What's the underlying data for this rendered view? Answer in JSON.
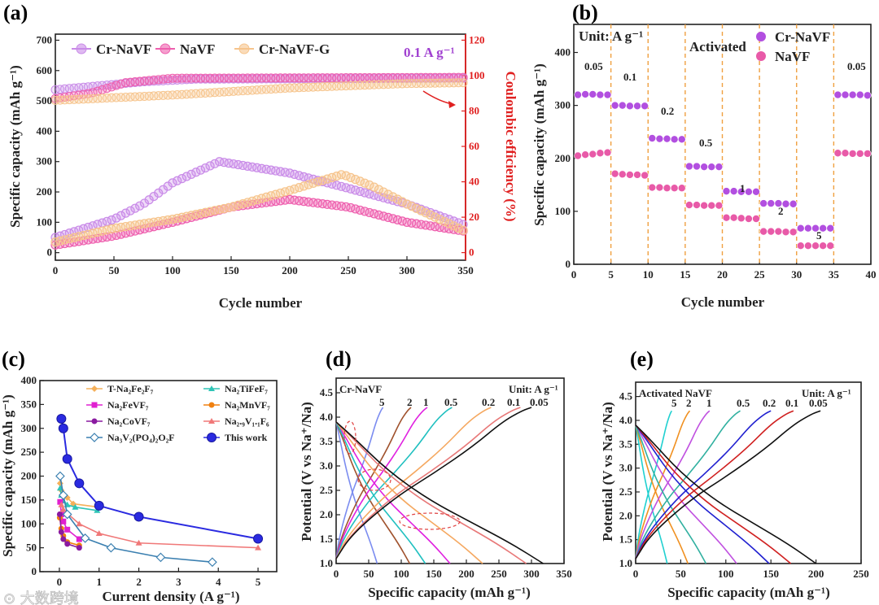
{
  "watermark": "大数跨境",
  "chart_data": [
    {
      "panel": "(a)",
      "type": "line",
      "xlabel": "Cycle number",
      "ylabel": "Specific capacity (mAh g⁻¹)",
      "y2label": "Coulombic efficiency (%)",
      "xlim": [
        0,
        350
      ],
      "ylim": [
        0,
        700
      ],
      "y2lim": [
        0,
        120
      ],
      "xticks": [
        0,
        50,
        100,
        150,
        200,
        250,
        300,
        350
      ],
      "yticks": [
        0,
        100,
        200,
        300,
        400,
        500,
        600,
        700
      ],
      "y2ticks": [
        0,
        20,
        40,
        60,
        80,
        100,
        120
      ],
      "rate_label": "0.1 A g⁻¹",
      "colors": {
        "rate_label": "#a040d0",
        "y2axis": "#e02020"
      },
      "series": [
        {
          "name": "Cr-NaVF",
          "color": "#c98be8",
          "capacity": [
            [
              0,
              50
            ],
            [
              50,
              110
            ],
            [
              75,
              160
            ],
            [
              100,
              230
            ],
            [
              140,
              300
            ],
            [
              200,
              262
            ],
            [
              250,
              212
            ],
            [
              300,
              160
            ],
            [
              350,
              90
            ]
          ],
          "coulombic_efficiency": [
            [
              0,
              92
            ],
            [
              50,
              95
            ],
            [
              75,
              96.5
            ],
            [
              120,
              98
            ],
            [
              350,
              98.5
            ]
          ]
        },
        {
          "name": "NaVF",
          "color": "#ee5fae",
          "capacity": [
            [
              0,
              25
            ],
            [
              50,
              55
            ],
            [
              100,
              100
            ],
            [
              150,
              150
            ],
            [
              200,
              175
            ],
            [
              250,
              150
            ],
            [
              300,
              100
            ],
            [
              350,
              70
            ]
          ],
          "coulombic_efficiency": [
            [
              0,
              87
            ],
            [
              30,
              90
            ],
            [
              60,
              96
            ],
            [
              100,
              98.5
            ],
            [
              350,
              99
            ]
          ]
        },
        {
          "name": "Cr-NaVF-G",
          "color": "#f6c48c",
          "capacity": [
            [
              0,
              35
            ],
            [
              50,
              80
            ],
            [
              100,
              110
            ],
            [
              150,
              150
            ],
            [
              200,
              205
            ],
            [
              245,
              258
            ],
            [
              270,
              220
            ],
            [
              300,
              160
            ],
            [
              350,
              70
            ]
          ],
          "coulombic_efficiency": [
            [
              0,
              86
            ],
            [
              100,
              89
            ],
            [
              200,
              93
            ],
            [
              300,
              95.5
            ],
            [
              350,
              96
            ]
          ]
        }
      ]
    },
    {
      "panel": "(b)",
      "type": "scatter",
      "xlabel": "Cycle number",
      "ylabel": "Specific capacity (mAh g⁻¹)",
      "xlim": [
        0,
        40
      ],
      "ylim": [
        0,
        450
      ],
      "xticks": [
        0,
        5,
        10,
        15,
        20,
        25,
        30,
        35,
        40
      ],
      "yticks": [
        0,
        100,
        200,
        300,
        400
      ],
      "unit_label": "Unit: A g⁻¹",
      "activated_label": "Activated",
      "rate_dividers": [
        5,
        10,
        15,
        20,
        25,
        30,
        35
      ],
      "rate_labels": [
        "0.05",
        "0.1",
        "0.2",
        "0.5",
        "1",
        "2",
        "5",
        "0.05"
      ],
      "series": [
        {
          "name": "Cr-NaVF",
          "color": "#b24fe0",
          "values": [
            320,
            321,
            321,
            320,
            320,
            300,
            300,
            299,
            299,
            299,
            238,
            237,
            237,
            236,
            236,
            185,
            185,
            184,
            184,
            184,
            138,
            138,
            137,
            137,
            137,
            115,
            115,
            115,
            114,
            114,
            68,
            68,
            68,
            68,
            68,
            320,
            320,
            320,
            320,
            319
          ]
        },
        {
          "name": "NaVF",
          "color": "#e85aa8",
          "values": [
            205,
            207,
            208,
            210,
            211,
            171,
            170,
            169,
            169,
            168,
            145,
            145,
            144,
            144,
            144,
            112,
            112,
            111,
            111,
            111,
            88,
            88,
            87,
            86,
            86,
            62,
            62,
            62,
            61,
            61,
            35,
            35,
            35,
            35,
            35,
            210,
            210,
            209,
            209,
            209
          ]
        }
      ]
    },
    {
      "panel": "(c)",
      "type": "line",
      "xlabel": "Current density (A g⁻¹)",
      "ylabel": "Specific capacity (mAh g⁻¹)",
      "xlim": [
        0,
        5
      ],
      "ylim": [
        0,
        400
      ],
      "xticks": [
        0,
        1,
        2,
        3,
        4,
        5
      ],
      "yticks": [
        0,
        50,
        100,
        150,
        200,
        250,
        300,
        350,
        400
      ],
      "legend": "top",
      "series": [
        {
          "name": "T-Na₂Fe₂F₇",
          "color": "#f5b05a",
          "marker": "diamond",
          "points": [
            [
              0.02,
              185
            ],
            [
              0.05,
              170
            ],
            [
              0.1,
              160
            ],
            [
              0.2,
              155
            ],
            [
              0.35,
              142
            ],
            [
              1,
              135
            ]
          ]
        },
        {
          "name": "Na₂TiFeF₇",
          "color": "#2ec4b6",
          "marker": "triangle",
          "points": [
            [
              0.02,
              175
            ],
            [
              0.05,
              160
            ],
            [
              0.1,
              148
            ],
            [
              0.2,
              140
            ],
            [
              0.4,
              135
            ],
            [
              0.95,
              128
            ]
          ]
        },
        {
          "name": "Na₂FeVF₇",
          "color": "#e020d0",
          "marker": "square",
          "points": [
            [
              0.02,
              146
            ],
            [
              0.05,
              120
            ],
            [
              0.1,
              105
            ],
            [
              0.2,
              88
            ],
            [
              0.5,
              68
            ]
          ]
        },
        {
          "name": "Na₂MnVF₇",
          "color": "#f08010",
          "marker": "circle",
          "points": [
            [
              0.01,
              113
            ],
            [
              0.05,
              90
            ],
            [
              0.1,
              75
            ],
            [
              0.2,
              62
            ],
            [
              0.5,
              55
            ]
          ]
        },
        {
          "name": "Na₂CoVF₇",
          "color": "#8a1aa0",
          "marker": "circle",
          "points": [
            [
              0.01,
              120
            ],
            [
              0.05,
              83
            ],
            [
              0.1,
              68
            ],
            [
              0.2,
              58
            ],
            [
              0.5,
              50
            ]
          ]
        },
        {
          "name": "Na₂.₉V₁.₁F₆",
          "color": "#f07878",
          "marker": "triangle",
          "points": [
            [
              0.05,
              140
            ],
            [
              0.1,
              130
            ],
            [
              0.2,
              122
            ],
            [
              0.5,
              100
            ],
            [
              1,
              80
            ],
            [
              2,
              60
            ],
            [
              5,
              50
            ]
          ]
        },
        {
          "name": "Na₃V₂(PO₄)₂O₂F",
          "color": "#3a7fb0",
          "marker": "open-diamond",
          "points": [
            [
              0.02,
              200
            ],
            [
              0.1,
              160
            ],
            [
              0.2,
              120
            ],
            [
              0.65,
              70
            ],
            [
              1.3,
              50
            ],
            [
              2.55,
              30
            ],
            [
              3.85,
              20
            ]
          ]
        },
        {
          "name": "This work",
          "color": "#2a2ae0",
          "marker": "big-circle",
          "points": [
            [
              0.05,
              320
            ],
            [
              0.1,
              300
            ],
            [
              0.2,
              236
            ],
            [
              0.5,
              185
            ],
            [
              1,
              138
            ],
            [
              2,
              115
            ],
            [
              5,
              69
            ]
          ]
        }
      ]
    },
    {
      "panel": "(d)",
      "type": "line",
      "title": "Cr-NaVF",
      "unit_label": "Unit: A g⁻¹",
      "xlabel": "Specific capacity (mAh g⁻¹)",
      "ylabel": "Potential (V vs Na⁺/Na)",
      "xlim": [
        0,
        350
      ],
      "ylim": [
        1.0,
        4.8
      ],
      "xticks": [
        0,
        50,
        100,
        150,
        200,
        250,
        300,
        350
      ],
      "yticks": [
        "1.0",
        "1.5",
        "2.0",
        "2.5",
        "3.0",
        "3.5",
        "4.0",
        "4.5"
      ],
      "series": [
        {
          "rate": "5",
          "color": "#7b8cf0",
          "charge_capacity": 72,
          "discharge_capacity": 63
        },
        {
          "rate": "2",
          "color": "#a0522d",
          "charge_capacity": 115,
          "discharge_capacity": 113
        },
        {
          "rate": "1",
          "color": "#e020e0",
          "charge_capacity": 140,
          "discharge_capacity": 175
        },
        {
          "rate": "0.5",
          "color": "#20c0c0",
          "charge_capacity": 178,
          "discharge_capacity": 137
        },
        {
          "rate": "0.2",
          "color": "#f5a860",
          "charge_capacity": 238,
          "discharge_capacity": 225
        },
        {
          "rate": "0.1",
          "color": "#e87878",
          "charge_capacity": 283,
          "discharge_capacity": 292
        },
        {
          "rate": "0.05",
          "color": "#111111",
          "charge_capacity": 300,
          "discharge_capacity": 318
        }
      ]
    },
    {
      "panel": "(e)",
      "type": "line",
      "title": "Activated NaVF",
      "unit_label": "Unit: A g⁻¹",
      "xlabel": "Specific capacity (mAh g⁻¹)",
      "ylabel": "Potential (V vs Na⁺/Na)",
      "xlim": [
        0,
        250
      ],
      "ylim": [
        1.0,
        4.8
      ],
      "xticks": [
        0,
        50,
        100,
        150,
        200,
        250
      ],
      "yticks": [
        "1.0",
        "1.5",
        "2.0",
        "2.5",
        "3.0",
        "3.5",
        "4.0",
        "4.5"
      ],
      "series": [
        {
          "rate": "5",
          "color": "#20d0d0",
          "charge_capacity": 40,
          "discharge_capacity": 35
        },
        {
          "rate": "2",
          "color": "#f09020",
          "charge_capacity": 60,
          "discharge_capacity": 58
        },
        {
          "rate": "1",
          "color": "#c050e0",
          "charge_capacity": 82,
          "discharge_capacity": 112
        },
        {
          "rate": "0.5",
          "color": "#30b0a0",
          "charge_capacity": 116,
          "discharge_capacity": 78
        },
        {
          "rate": "0.2",
          "color": "#2020d0",
          "charge_capacity": 150,
          "discharge_capacity": 148
        },
        {
          "rate": "0.1",
          "color": "#d02020",
          "charge_capacity": 175,
          "discharge_capacity": 172
        },
        {
          "rate": "0.05",
          "color": "#111111",
          "charge_capacity": 205,
          "discharge_capacity": 200
        }
      ]
    }
  ]
}
